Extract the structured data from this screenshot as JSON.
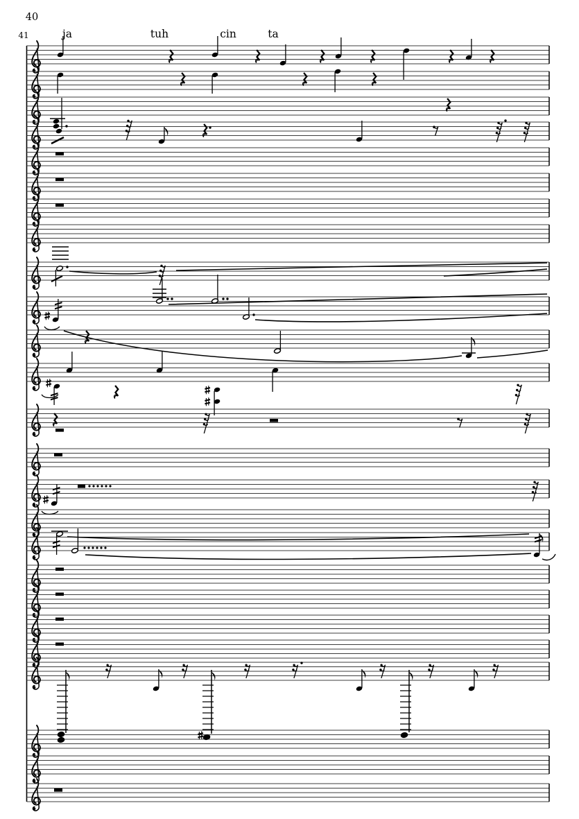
{
  "page_background": "#ffffff",
  "ink_color": "#000000",
  "staff_line_color": "#3c3c3c",
  "measure_numbers": {
    "previous": "40",
    "current": "41"
  },
  "lyrics": {
    "syllables": [
      {
        "text": "ja"
      },
      {
        "text": "tuh"
      },
      {
        "text": "cin"
      },
      {
        "text": "ta"
      }
    ]
  },
  "score": {
    "type": "orchestral score page, single system, one measure",
    "system_count": 1,
    "staff_count": 25,
    "staves": [
      {
        "n": 1,
        "clef": "treble",
        "content": "vocal melody: six quarter notes alternating with quarter rests, lyrics above"
      },
      {
        "n": 2,
        "clef": "treble",
        "content": "three quarter notes separated by quarter rests"
      },
      {
        "n": 3,
        "clef": "treble",
        "content": "single quarter rest near end of measure"
      },
      {
        "n": 4,
        "clef": "treble",
        "content": "dotted chord with tremolo slash, 32nd rest, eighth note, dotted quarter rest, quarter note, eighth rest, dotted 32nd rest, 32nd rest"
      },
      {
        "n": 5,
        "clef": "treble",
        "content": "whole-measure rest"
      },
      {
        "n": 6,
        "clef": "treble",
        "content": "whole-measure rest"
      },
      {
        "n": 7,
        "clef": "treble",
        "content": "whole-measure rest"
      },
      {
        "n": 8,
        "clef": "treble",
        "content": "empty measure"
      },
      {
        "n": 9,
        "clef": "treble",
        "content": "high dotted tremolo note on ledger lines, 32nd rest, long ties to end of system"
      },
      {
        "n": 10,
        "clef": "treble",
        "content": "double-dotted half notes with ledger lines, dotted half note, long ties to end of system"
      },
      {
        "n": 11,
        "clef": "treble",
        "content": "sharped tremolo eighth note, quarter rest, half note, tied eighth note near end"
      },
      {
        "n": 12,
        "clef": "treble",
        "content": "sharped tremolo note, three quarter notes, quarter rest, sharped two-note chord, 32nd rest"
      },
      {
        "n": 13,
        "clef": "treble",
        "content": "quarter rest over half rest, 32nd rests, half rest, eighth rest"
      },
      {
        "n": 14,
        "clef": "treble",
        "content": "whole-measure rest"
      },
      {
        "n": 15,
        "clef": "treble",
        "content": "half rest followed by dot row, sharped tremolo eighth note below staff, 32nd rest at end"
      },
      {
        "n": 16,
        "clef": "treble",
        "content": "empty measure"
      },
      {
        "n": 17,
        "clef": "treble",
        "content": "tremolo note and double-dotted half note with dot row, long ties to tremolo eighth note at end"
      },
      {
        "n": 18,
        "clef": "treble",
        "content": "whole-measure rest"
      },
      {
        "n": 19,
        "clef": "treble",
        "content": "whole-measure rest"
      },
      {
        "n": 20,
        "clef": "treble",
        "content": "whole-measure rest"
      },
      {
        "n": 21,
        "clef": "treble",
        "content": "whole-measure rest"
      },
      {
        "n": 22,
        "clef": "treble",
        "content": "alternating sixteenth rests and eighth notes; three notes with very long stems and rung-like ledger lines reaching the staff below"
      },
      {
        "n": 23,
        "clef": "treble",
        "content": "low chord and sharped low notes attached to the long stems from the staff above"
      },
      {
        "n": 24,
        "clef": "treble",
        "content": "empty measure"
      },
      {
        "n": 25,
        "clef": "treble",
        "content": "whole-measure rest"
      }
    ]
  }
}
